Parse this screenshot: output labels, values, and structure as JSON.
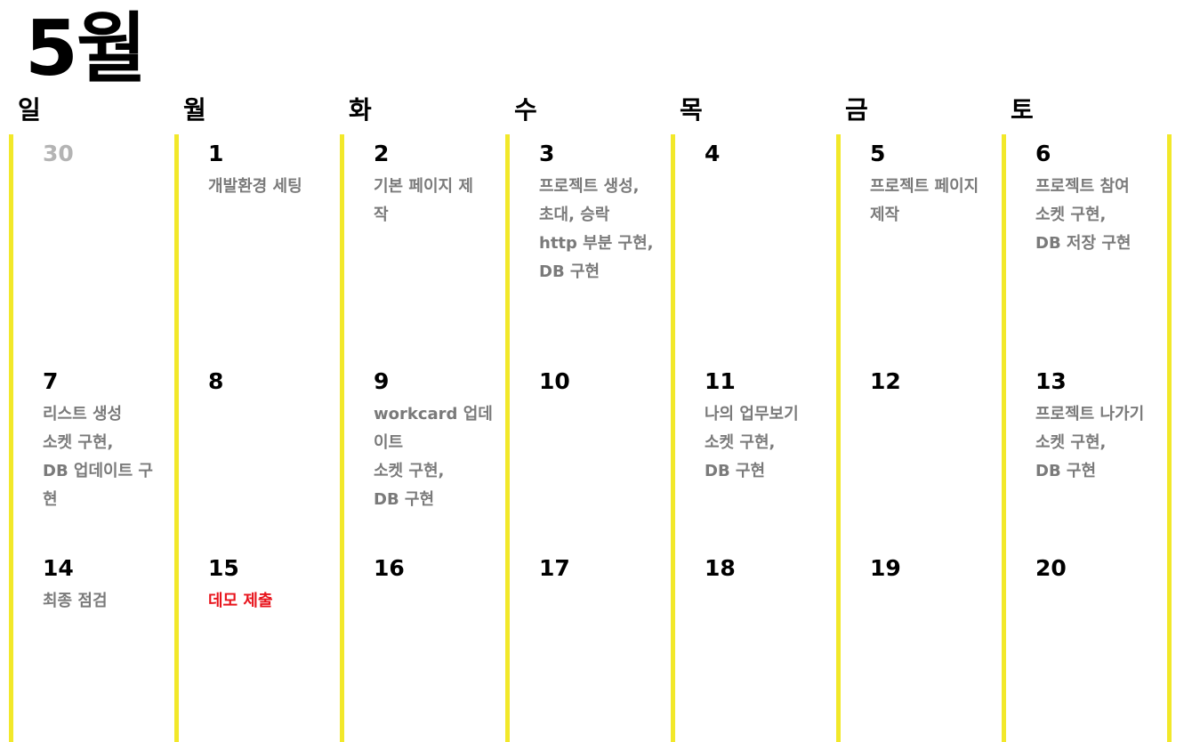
{
  "month_title": "5월",
  "weekdays": [
    "일",
    "월",
    "화",
    "수",
    "목",
    "금",
    "토"
  ],
  "colors": {
    "column_line": "#f2e82a",
    "event_text": "#7a7a7a",
    "highlight_event": "#e8141c",
    "muted_day": "#b4b4b4"
  },
  "weeks": [
    [
      {
        "num": "30",
        "muted": true,
        "lines": []
      },
      {
        "num": "1",
        "lines": [
          "개발환경 세팅"
        ]
      },
      {
        "num": "2",
        "lines": [
          "기본 페이지 제",
          "작"
        ]
      },
      {
        "num": "3",
        "lines": [
          "프로젝트 생성,",
          "초대, 승락",
          "http 부분 구현,",
          "DB 구현"
        ]
      },
      {
        "num": "4",
        "lines": []
      },
      {
        "num": "5",
        "lines": [
          "프로젝트 페이지",
          "제작"
        ]
      },
      {
        "num": "6",
        "lines": [
          "프로젝트 참여",
          "소켓 구현,",
          "DB 저장 구현"
        ]
      }
    ],
    [
      {
        "num": "7",
        "lines": [
          "리스트 생성",
          "소켓 구현,",
          "DB 업데이트 구",
          "현"
        ]
      },
      {
        "num": "8",
        "lines": []
      },
      {
        "num": "9",
        "lines": [
          "workcard 업데",
          "이트",
          "소켓 구현,",
          "DB 구현"
        ]
      },
      {
        "num": "10",
        "lines": []
      },
      {
        "num": "11",
        "lines": [
          "나의 업무보기",
          "소켓 구현,",
          "DB 구현"
        ]
      },
      {
        "num": "12",
        "lines": []
      },
      {
        "num": "13",
        "lines": [
          "프로젝트 나가기",
          "소켓 구현,",
          "DB 구현"
        ]
      }
    ],
    [
      {
        "num": "14",
        "lines": [
          "최종 점검"
        ]
      },
      {
        "num": "15",
        "highlight": true,
        "lines": [
          "데모 제출"
        ]
      },
      {
        "num": "16",
        "lines": []
      },
      {
        "num": "17",
        "lines": []
      },
      {
        "num": "18",
        "lines": []
      },
      {
        "num": "19",
        "lines": []
      },
      {
        "num": "20",
        "lines": []
      }
    ]
  ]
}
